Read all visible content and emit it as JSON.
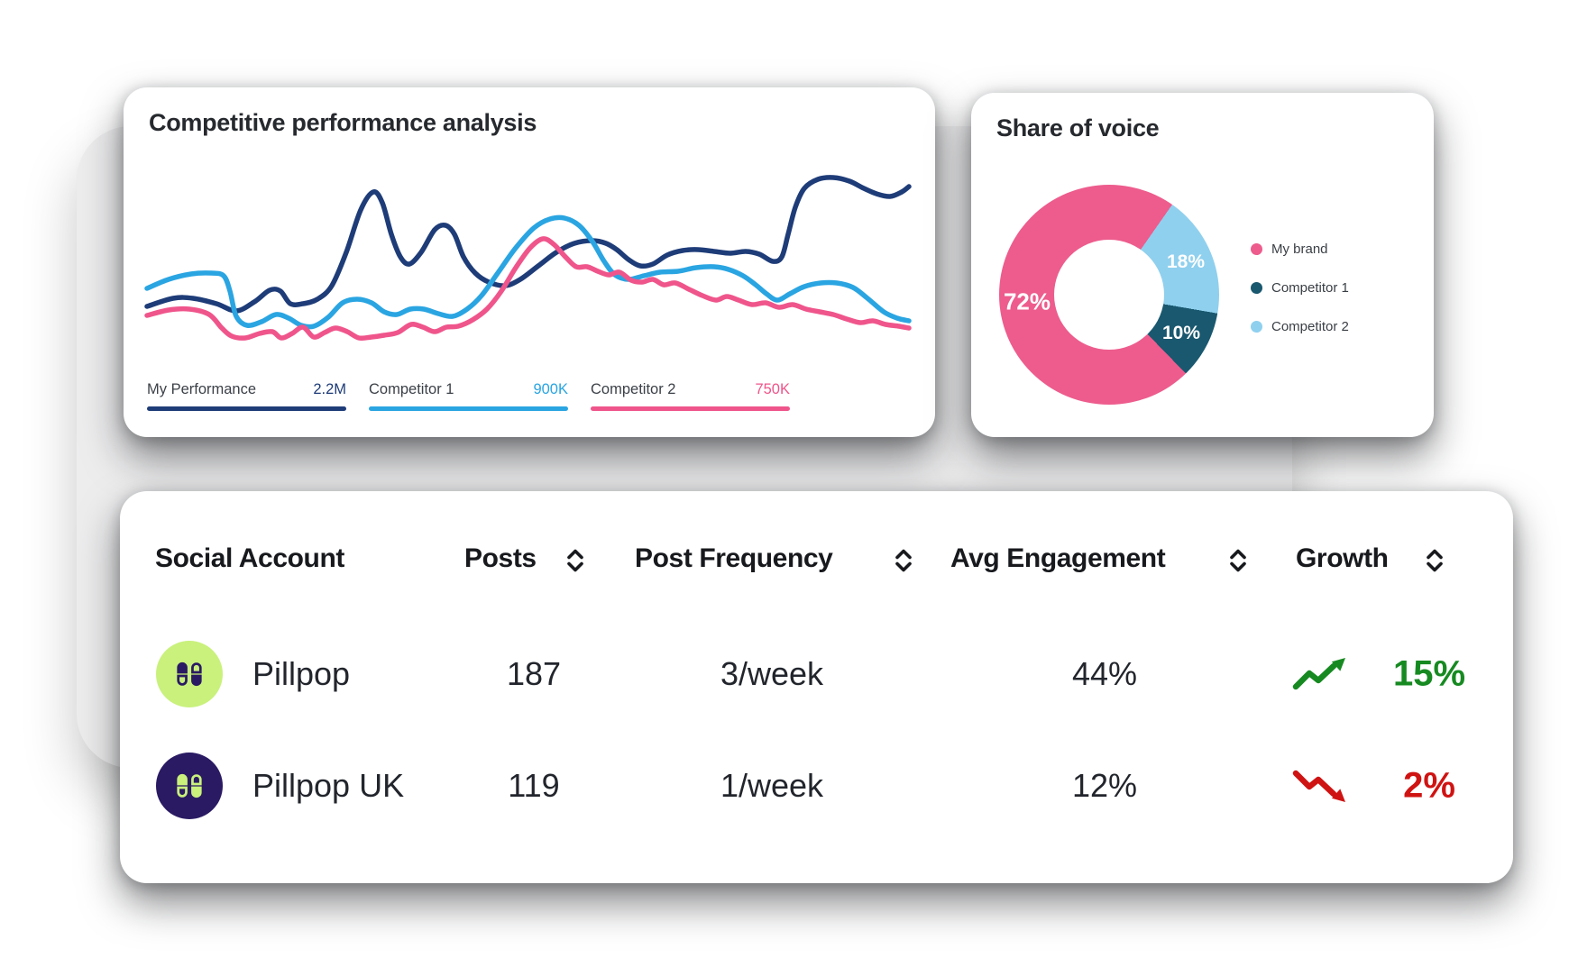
{
  "colors": {
    "navy": "#1e3c78",
    "bright_blue": "#2aa5e2",
    "pink": "#ef558b",
    "donut_pink": "#ed5c8d",
    "donut_teal": "#19586f",
    "donut_light_blue": "#8fd0ee",
    "growth_green": "#168a21",
    "growth_red": "#cf1312",
    "avatar_lime": "#c9f17c",
    "avatar_indigo": "#2a1a63",
    "backdrop_gray": "#ededee"
  },
  "chart_data": [
    {
      "id": "performance",
      "type": "line",
      "title": "Competitive performance analysis",
      "grid": false,
      "axes_visible": false,
      "note": "no numeric axes shown; points are curve coordinates in a 870x215 canvas, y inverted",
      "series": [
        {
          "name": "My Performance",
          "summary_value": "2.2M",
          "color": "#1e3c78",
          "points": [
            [
              11,
              155
            ],
            [
              40,
              146
            ],
            [
              62,
              146
            ],
            [
              88,
              152
            ],
            [
              110,
              160
            ],
            [
              130,
              150
            ],
            [
              147,
              137
            ],
            [
              159,
              138
            ],
            [
              170,
              152
            ],
            [
              184,
              152
            ],
            [
              200,
              147
            ],
            [
              216,
              132
            ],
            [
              232,
              95
            ],
            [
              248,
              48
            ],
            [
              262,
              28
            ],
            [
              272,
              40
            ],
            [
              282,
              75
            ],
            [
              292,
              100
            ],
            [
              302,
              108
            ],
            [
              315,
              95
            ],
            [
              330,
              70
            ],
            [
              342,
              65
            ],
            [
              352,
              75
            ],
            [
              362,
              100
            ],
            [
              375,
              118
            ],
            [
              390,
              128
            ],
            [
              408,
              132
            ],
            [
              425,
              125
            ],
            [
              445,
              110
            ],
            [
              465,
              95
            ],
            [
              485,
              85
            ],
            [
              505,
              82
            ],
            [
              520,
              85
            ],
            [
              532,
              92
            ],
            [
              545,
              103
            ],
            [
              558,
              110
            ],
            [
              572,
              108
            ],
            [
              588,
              98
            ],
            [
              605,
              93
            ],
            [
              622,
              92
            ],
            [
              640,
              94
            ],
            [
              658,
              96
            ],
            [
              675,
              94
            ],
            [
              690,
              97
            ],
            [
              705,
              105
            ],
            [
              715,
              100
            ],
            [
              722,
              75
            ],
            [
              730,
              45
            ],
            [
              740,
              24
            ],
            [
              755,
              14
            ],
            [
              772,
              12
            ],
            [
              790,
              16
            ],
            [
              806,
              24
            ],
            [
              820,
              30
            ],
            [
              835,
              33
            ],
            [
              848,
              28
            ],
            [
              856,
              22
            ]
          ]
        },
        {
          "name": "Competitor 1",
          "summary_value": "900K",
          "color": "#2aa5e2",
          "points": [
            [
              11,
              135
            ],
            [
              35,
              125
            ],
            [
              60,
              119
            ],
            [
              82,
              118
            ],
            [
              96,
              121
            ],
            [
              103,
              138
            ],
            [
              110,
              166
            ],
            [
              122,
              176
            ],
            [
              138,
              172
            ],
            [
              154,
              164
            ],
            [
              168,
              168
            ],
            [
              182,
              176
            ],
            [
              196,
              177
            ],
            [
              212,
              167
            ],
            [
              228,
              151
            ],
            [
              244,
              147
            ],
            [
              260,
              151
            ],
            [
              274,
              161
            ],
            [
              288,
              164
            ],
            [
              303,
              158
            ],
            [
              318,
              158
            ],
            [
              334,
              163
            ],
            [
              350,
              166
            ],
            [
              366,
              158
            ],
            [
              382,
              143
            ],
            [
              400,
              118
            ],
            [
              420,
              90
            ],
            [
              440,
              68
            ],
            [
              458,
              58
            ],
            [
              474,
              57
            ],
            [
              490,
              65
            ],
            [
              505,
              83
            ],
            [
              518,
              105
            ],
            [
              530,
              120
            ],
            [
              545,
              125
            ],
            [
              562,
              121
            ],
            [
              580,
              117
            ],
            [
              600,
              116
            ],
            [
              620,
              112
            ],
            [
              640,
              111
            ],
            [
              656,
              114
            ],
            [
              672,
              121
            ],
            [
              686,
              131
            ],
            [
              698,
              141
            ],
            [
              710,
              148
            ],
            [
              724,
              141
            ],
            [
              740,
              133
            ],
            [
              758,
              129
            ],
            [
              776,
              129
            ],
            [
              794,
              134
            ],
            [
              810,
              146
            ],
            [
              828,
              161
            ],
            [
              843,
              168
            ],
            [
              856,
              171
            ]
          ]
        },
        {
          "name": "Competitor 2",
          "summary_value": "750K",
          "color": "#ef558b",
          "points": [
            [
              11,
              165
            ],
            [
              35,
              159
            ],
            [
              58,
              158
            ],
            [
              80,
              164
            ],
            [
              94,
              179
            ],
            [
              105,
              188
            ],
            [
              120,
              190
            ],
            [
              136,
              185
            ],
            [
              150,
              183
            ],
            [
              160,
              190
            ],
            [
              172,
              185
            ],
            [
              184,
              178
            ],
            [
              196,
              189
            ],
            [
              208,
              184
            ],
            [
              220,
              179
            ],
            [
              233,
              183
            ],
            [
              246,
              190
            ],
            [
              260,
              189
            ],
            [
              274,
              187
            ],
            [
              289,
              184
            ],
            [
              304,
              175
            ],
            [
              317,
              178
            ],
            [
              330,
              183
            ],
            [
              343,
              178
            ],
            [
              356,
              177
            ],
            [
              372,
              170
            ],
            [
              388,
              158
            ],
            [
              404,
              138
            ],
            [
              420,
              112
            ],
            [
              436,
              90
            ],
            [
              450,
              80
            ],
            [
              462,
              86
            ],
            [
              475,
              100
            ],
            [
              487,
              111
            ],
            [
              499,
              111
            ],
            [
              511,
              116
            ],
            [
              523,
              120
            ],
            [
              535,
              117
            ],
            [
              548,
              126
            ],
            [
              560,
              128
            ],
            [
              572,
              125
            ],
            [
              584,
              131
            ],
            [
              597,
              129
            ],
            [
              612,
              136
            ],
            [
              627,
              143
            ],
            [
              642,
              148
            ],
            [
              654,
              144
            ],
            [
              667,
              148
            ],
            [
              682,
              153
            ],
            [
              697,
              151
            ],
            [
              712,
              156
            ],
            [
              727,
              153
            ],
            [
              742,
              158
            ],
            [
              757,
              161
            ],
            [
              772,
              164
            ],
            [
              787,
              169
            ],
            [
              802,
              173
            ],
            [
              816,
              171
            ],
            [
              830,
              175
            ],
            [
              845,
              177
            ],
            [
              856,
              179
            ]
          ]
        }
      ]
    },
    {
      "id": "share_of_voice",
      "type": "pie",
      "donut": true,
      "title": "Share of voice",
      "labels": [
        "My brand",
        "Competitor 1",
        "Competitor 2"
      ],
      "values": [
        72,
        10,
        18
      ],
      "colors": [
        "#ed5c8d",
        "#19586f",
        "#8fd0ee"
      ],
      "slice_labels": [
        "72%",
        "10%",
        "18%"
      ],
      "start_angle_deg": 35,
      "draw_order": [
        2,
        1,
        0
      ],
      "legend_position": "right"
    },
    {
      "id": "social_accounts",
      "type": "table",
      "columns": [
        "Social Account",
        "Posts",
        "Post Frequency",
        "Avg Engagement",
        "Growth"
      ],
      "sortable_columns": [
        "Posts",
        "Post Frequency",
        "Avg Engagement",
        "Growth"
      ],
      "rows": [
        {
          "account": "Pillpop",
          "posts": "187",
          "post_frequency": "3/week",
          "avg_engagement": "44%",
          "growth": "15%",
          "trend": "up",
          "trend_color": "#168a21",
          "avatar_bg": "#c9f17c",
          "avatar_pill": "#2a1a63"
        },
        {
          "account": "Pillpop UK",
          "posts": "119",
          "post_frequency": "1/week",
          "avg_engagement": "12%",
          "growth": "2%",
          "trend": "down",
          "trend_color": "#cf1312",
          "avatar_bg": "#2a1a63",
          "avatar_pill": "#c9f17c"
        }
      ]
    }
  ]
}
